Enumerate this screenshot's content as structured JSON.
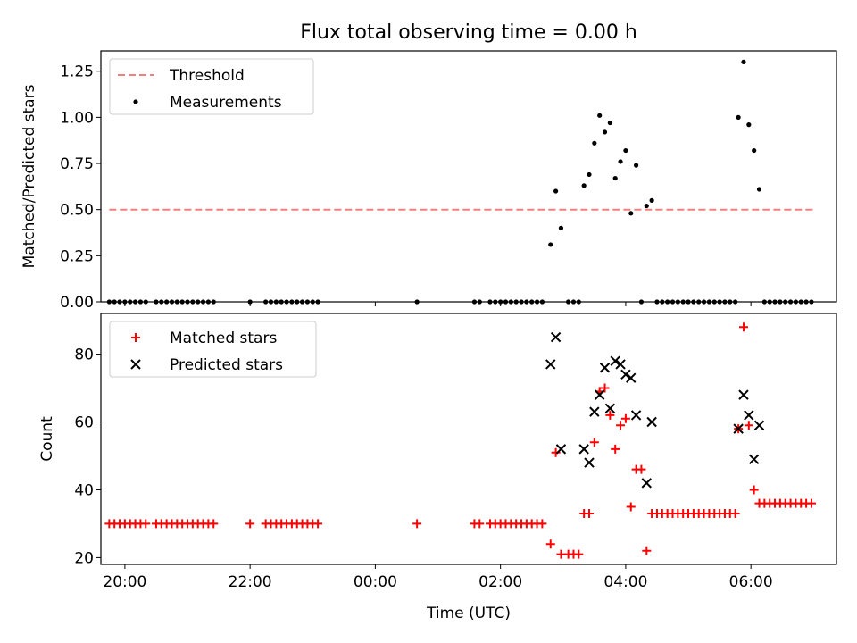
{
  "figure": {
    "title": "Flux total observing time = 0.00 h",
    "xlabel": "Time (UTC)"
  },
  "chart_data": [
    {
      "type": "scatter",
      "panel": "top",
      "ylabel": "Matched/Predicted stars",
      "xlim": [
        "19:37",
        "07:22"
      ],
      "ylim": [
        0,
        1.36
      ],
      "yticks": [
        0.0,
        0.25,
        0.5,
        0.75,
        1.0,
        1.25
      ],
      "ytick_labels": [
        "0.00",
        "0.25",
        "0.50",
        "0.75",
        "1.00",
        "1.25"
      ],
      "xticks": [
        "20:00",
        "22:00",
        "00:00",
        "02:00",
        "04:00",
        "06:00"
      ],
      "legend_position": "top-left",
      "series": [
        {
          "name": "Threshold",
          "kind": "line",
          "color": "#f08080",
          "style": "dashed",
          "x": [
            "19:45",
            "07:00"
          ],
          "y": [
            0.5,
            0.5
          ]
        },
        {
          "name": "Measurements",
          "kind": "scatter",
          "color": "#000000",
          "marker": "dot",
          "x": [
            "19:45",
            "19:50",
            "19:55",
            "20:00",
            "20:05",
            "20:10",
            "20:15",
            "20:20",
            "20:30",
            "20:35",
            "20:40",
            "20:45",
            "20:50",
            "20:55",
            "21:00",
            "21:05",
            "21:10",
            "21:15",
            "21:20",
            "21:25",
            "22:00",
            "22:15",
            "22:20",
            "22:25",
            "22:30",
            "22:35",
            "22:40",
            "22:45",
            "22:50",
            "22:55",
            "23:00",
            "23:05",
            "00:40",
            "01:35",
            "01:40",
            "01:50",
            "01:55",
            "02:00",
            "02:05",
            "02:10",
            "02:15",
            "02:20",
            "02:25",
            "02:30",
            "02:35",
            "02:40",
            "02:48",
            "02:53",
            "02:58",
            "03:05",
            "03:10",
            "03:15",
            "03:20",
            "03:25",
            "03:30",
            "03:35",
            "03:40",
            "03:45",
            "03:50",
            "03:55",
            "04:00",
            "04:05",
            "04:10",
            "04:15",
            "04:20",
            "04:25",
            "04:30",
            "04:35",
            "04:40",
            "04:45",
            "04:50",
            "04:55",
            "05:00",
            "05:05",
            "05:10",
            "05:15",
            "05:20",
            "05:25",
            "05:30",
            "05:35",
            "05:40",
            "05:45",
            "05:48",
            "05:53",
            "05:58",
            "06:03",
            "06:08",
            "06:13",
            "06:18",
            "06:23",
            "06:28",
            "06:33",
            "06:38",
            "06:43",
            "06:48",
            "06:53",
            "06:58"
          ],
          "y": [
            0,
            0,
            0,
            0,
            0,
            0,
            0,
            0,
            0,
            0,
            0,
            0,
            0,
            0,
            0,
            0,
            0,
            0,
            0,
            0,
            0,
            0,
            0,
            0,
            0,
            0,
            0,
            0,
            0,
            0,
            0,
            0,
            0,
            0,
            0,
            0,
            0,
            0,
            0,
            0,
            0,
            0,
            0,
            0,
            0,
            0,
            0.31,
            0.6,
            0.4,
            0,
            0,
            0,
            0.63,
            0.69,
            0.86,
            1.01,
            0.92,
            0.97,
            0.67,
            0.76,
            0.82,
            0.48,
            0.74,
            0,
            0.52,
            0.55,
            0,
            0,
            0,
            0,
            0,
            0,
            0,
            0,
            0,
            0,
            0,
            0,
            0,
            0,
            0,
            0,
            1.0,
            1.3,
            0.96,
            0.82,
            0.61,
            0,
            0,
            0,
            0,
            0,
            0,
            0,
            0,
            0,
            0
          ]
        }
      ]
    },
    {
      "type": "scatter",
      "panel": "bottom",
      "ylabel": "Count",
      "xlim": [
        "19:37",
        "07:22"
      ],
      "ylim": [
        18,
        92
      ],
      "yticks": [
        20,
        40,
        60,
        80
      ],
      "ytick_labels": [
        "20",
        "40",
        "60",
        "80"
      ],
      "xticks": [
        "20:00",
        "22:00",
        "00:00",
        "02:00",
        "04:00",
        "06:00"
      ],
      "legend_position": "top-left",
      "series": [
        {
          "name": "Matched stars",
          "kind": "scatter",
          "color": "#ff0000",
          "marker": "plus",
          "x": [
            "19:45",
            "19:50",
            "19:55",
            "20:00",
            "20:05",
            "20:10",
            "20:15",
            "20:20",
            "20:30",
            "20:35",
            "20:40",
            "20:45",
            "20:50",
            "20:55",
            "21:00",
            "21:05",
            "21:10",
            "21:15",
            "21:20",
            "21:25",
            "22:00",
            "22:15",
            "22:20",
            "22:25",
            "22:30",
            "22:35",
            "22:40",
            "22:45",
            "22:50",
            "22:55",
            "23:00",
            "23:05",
            "00:40",
            "01:35",
            "01:40",
            "01:50",
            "01:55",
            "02:00",
            "02:05",
            "02:10",
            "02:15",
            "02:20",
            "02:25",
            "02:30",
            "02:35",
            "02:40",
            "02:48",
            "02:53",
            "02:58",
            "03:05",
            "03:10",
            "03:15",
            "03:20",
            "03:25",
            "03:30",
            "03:35",
            "03:40",
            "03:45",
            "03:50",
            "03:55",
            "04:00",
            "04:05",
            "04:10",
            "04:15",
            "04:20",
            "04:25",
            "04:30",
            "04:35",
            "04:40",
            "04:45",
            "04:50",
            "04:55",
            "05:00",
            "05:05",
            "05:10",
            "05:15",
            "05:20",
            "05:25",
            "05:30",
            "05:35",
            "05:40",
            "05:45",
            "05:48",
            "05:53",
            "05:58",
            "06:03",
            "06:08",
            "06:13",
            "06:18",
            "06:23",
            "06:28",
            "06:33",
            "06:38",
            "06:43",
            "06:48",
            "06:53",
            "06:58"
          ],
          "y": [
            30,
            30,
            30,
            30,
            30,
            30,
            30,
            30,
            30,
            30,
            30,
            30,
            30,
            30,
            30,
            30,
            30,
            30,
            30,
            30,
            30,
            30,
            30,
            30,
            30,
            30,
            30,
            30,
            30,
            30,
            30,
            30,
            30,
            30,
            30,
            30,
            30,
            30,
            30,
            30,
            30,
            30,
            30,
            30,
            30,
            30,
            24,
            51,
            21,
            21,
            21,
            21,
            33,
            33,
            54,
            69,
            70,
            62,
            52,
            59,
            61,
            35,
            46,
            46,
            22,
            33,
            33,
            33,
            33,
            33,
            33,
            33,
            33,
            33,
            33,
            33,
            33,
            33,
            33,
            33,
            33,
            33,
            58,
            88,
            59,
            40,
            36,
            36,
            36,
            36,
            36,
            36,
            36,
            36,
            36,
            36,
            36
          ]
        },
        {
          "name": "Predicted stars",
          "kind": "scatter",
          "color": "#000000",
          "marker": "x",
          "x": [
            "02:48",
            "02:53",
            "02:58",
            "03:20",
            "03:25",
            "03:30",
            "03:35",
            "03:40",
            "03:45",
            "03:50",
            "03:55",
            "04:00",
            "04:05",
            "04:10",
            "04:20",
            "04:25",
            "05:48",
            "05:53",
            "05:58",
            "06:03",
            "06:08"
          ],
          "y": [
            77,
            85,
            52,
            52,
            48,
            63,
            68,
            76,
            64,
            78,
            77,
            74,
            73,
            62,
            42,
            60,
            58,
            68,
            62,
            49,
            59
          ]
        }
      ]
    }
  ]
}
